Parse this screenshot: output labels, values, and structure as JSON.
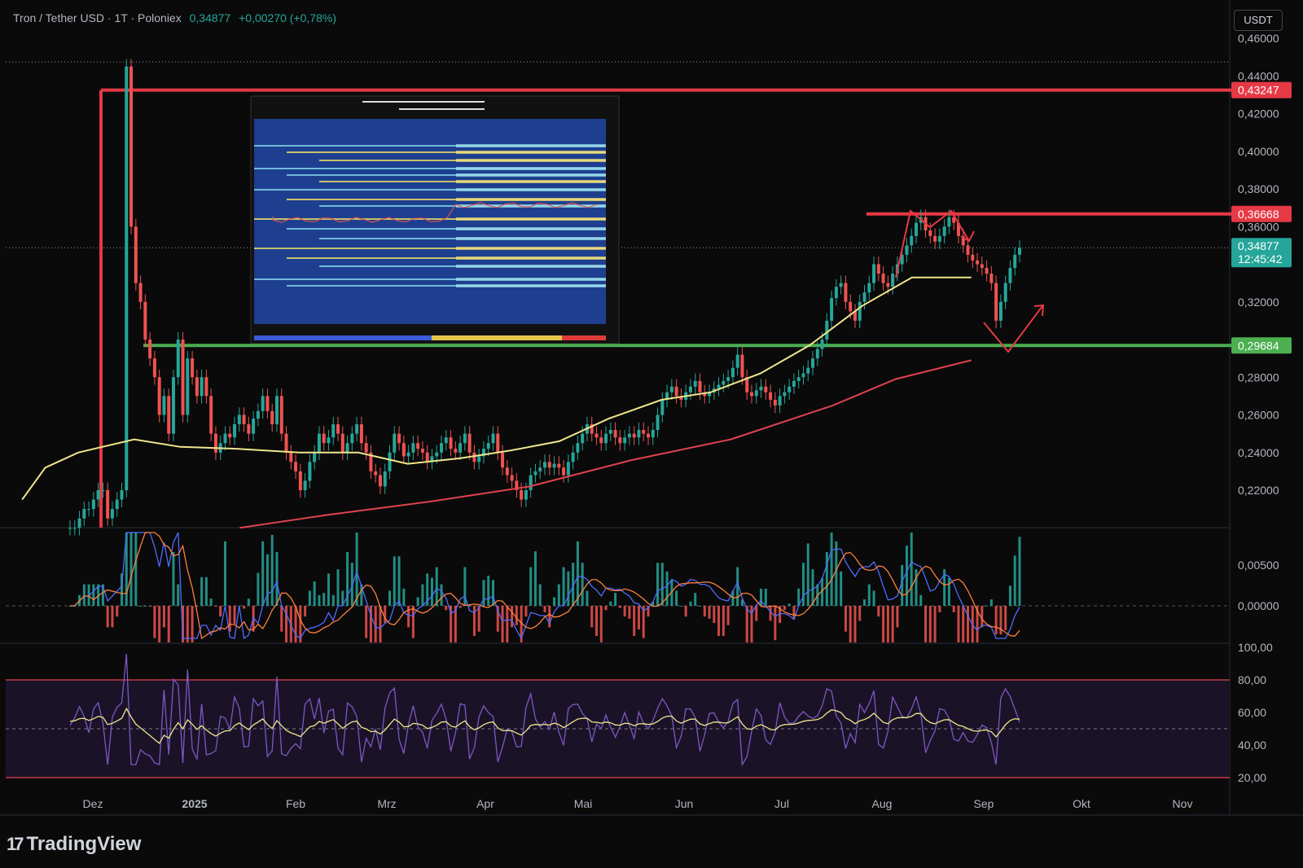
{
  "header": {
    "symbol_text": "Tron / Tether USD · 1T · Poloniex",
    "price": "0,34877",
    "change": "+0,00270 (+0,78%)"
  },
  "currency_button": "USDT",
  "brand": {
    "logo_text": "TradingView",
    "logo_mark": "17"
  },
  "colors": {
    "background": "#0a0a0a",
    "up": "#26a69a",
    "down": "#ef5350",
    "ma_fast": "#f0e68c",
    "ma_slow": "#e0424f",
    "resistance": "#e53945",
    "support": "#4caf50",
    "macd_line": "#4f6bff",
    "signal_line": "#ff7f3f",
    "rsi_line": "#7e57c2"
  },
  "chart_data": [
    {
      "type": "candlestick",
      "title": "Tron / Tether USD · 1T · Poloniex",
      "xlabel": "",
      "ylabel": "USDT",
      "month_labels": [
        "Dez",
        "2025",
        "Feb",
        "Mrz",
        "Apr",
        "Mai",
        "Jun",
        "Jul",
        "Aug",
        "Sep",
        "Okt",
        "Nov"
      ],
      "y_ticks": [
        "0,46000",
        "0,44000",
        "0,42000",
        "0,40000",
        "0,38000",
        "0,36000",
        "0,32000",
        "0,28000",
        "0,26000",
        "0,24000",
        "0,22000"
      ],
      "ylim": [
        0.2,
        0.465
      ],
      "horizontal_levels": [
        {
          "label": "0,43247",
          "value": 0.43247,
          "color": "resistance"
        },
        {
          "label": "0,36668",
          "value": 0.36668,
          "color": "resistance"
        },
        {
          "label": "0,29684",
          "value": 0.29684,
          "color": "support"
        }
      ],
      "last_price_label": {
        "price": "0,34877",
        "countdown": "12:45:42",
        "value": 0.34877
      },
      "moving_averages": [
        {
          "color": "ma_fast",
          "points": [
            [
              "2024-11-28",
              0.215
            ],
            [
              "2024-12-05",
              0.232
            ],
            [
              "2024-12-15",
              0.24
            ],
            [
              "2025-01-01",
              0.247
            ],
            [
              "2025-01-15",
              0.243
            ],
            [
              "2025-02-01",
              0.242
            ],
            [
              "2025-02-20",
              0.24
            ],
            [
              "2025-03-10",
              0.24
            ],
            [
              "2025-03-25",
              0.234
            ],
            [
              "2025-04-10",
              0.237
            ],
            [
              "2025-04-25",
              0.241
            ],
            [
              "2025-05-10",
              0.246
            ],
            [
              "2025-05-25",
              0.258
            ],
            [
              "2025-06-10",
              0.268
            ],
            [
              "2025-06-25",
              0.272
            ],
            [
              "2025-07-10",
              0.282
            ],
            [
              "2025-07-25",
              0.297
            ],
            [
              "2025-08-10",
              0.318
            ],
            [
              "2025-08-25",
              0.333
            ],
            [
              "2025-09-05",
              0.333
            ],
            [
              "2025-09-12",
              0.333
            ]
          ]
        },
        {
          "color": "ma_slow",
          "points": [
            [
              "2025-02-02",
              0.2
            ],
            [
              "2025-03-01",
              0.207
            ],
            [
              "2025-04-01",
              0.214
            ],
            [
              "2025-05-01",
              0.222
            ],
            [
              "2025-06-01",
              0.236
            ],
            [
              "2025-07-01",
              0.247
            ],
            [
              "2025-08-01",
              0.265
            ],
            [
              "2025-08-20",
              0.279
            ],
            [
              "2025-09-12",
              0.289
            ]
          ]
        }
      ],
      "candle_closes": [
        0.2,
        0.2,
        0.205,
        0.21,
        0.21,
        0.215,
        0.22,
        0.22,
        0.205,
        0.21,
        0.215,
        0.22,
        0.445,
        0.36,
        0.33,
        0.32,
        0.3,
        0.29,
        0.28,
        0.26,
        0.27,
        0.25,
        0.28,
        0.3,
        0.26,
        0.29,
        0.28,
        0.27,
        0.28,
        0.27,
        0.25,
        0.24,
        0.245,
        0.25,
        0.248,
        0.255,
        0.26,
        0.255,
        0.25,
        0.258,
        0.262,
        0.27,
        0.262,
        0.255,
        0.27,
        0.25,
        0.24,
        0.235,
        0.23,
        0.22,
        0.225,
        0.235,
        0.24,
        0.25,
        0.245,
        0.248,
        0.255,
        0.25,
        0.24,
        0.245,
        0.25,
        0.255,
        0.245,
        0.24,
        0.23,
        0.228,
        0.222,
        0.23,
        0.24,
        0.25,
        0.245,
        0.238,
        0.24,
        0.245,
        0.242,
        0.24,
        0.235,
        0.238,
        0.24,
        0.245,
        0.248,
        0.242,
        0.24,
        0.245,
        0.25,
        0.24,
        0.235,
        0.238,
        0.242,
        0.245,
        0.25,
        0.24,
        0.232,
        0.228,
        0.225,
        0.22,
        0.215,
        0.22,
        0.228,
        0.23,
        0.232,
        0.235,
        0.232,
        0.234,
        0.232,
        0.228,
        0.235,
        0.24,
        0.245,
        0.25,
        0.255,
        0.25,
        0.248,
        0.245,
        0.25,
        0.252,
        0.248,
        0.245,
        0.248,
        0.25,
        0.248,
        0.252,
        0.25,
        0.248,
        0.252,
        0.26,
        0.268,
        0.272,
        0.275,
        0.27,
        0.268,
        0.272,
        0.275,
        0.278,
        0.272,
        0.27,
        0.272,
        0.274,
        0.276,
        0.278,
        0.28,
        0.285,
        0.292,
        0.28,
        0.272,
        0.27,
        0.273,
        0.275,
        0.272,
        0.268,
        0.265,
        0.27,
        0.272,
        0.275,
        0.278,
        0.28,
        0.282,
        0.285,
        0.29,
        0.295,
        0.3,
        0.31,
        0.322,
        0.328,
        0.33,
        0.32,
        0.315,
        0.31,
        0.32,
        0.325,
        0.33,
        0.34,
        0.335,
        0.33,
        0.328,
        0.335,
        0.34,
        0.345,
        0.35,
        0.355,
        0.362,
        0.365,
        0.358,
        0.355,
        0.352,
        0.355,
        0.36,
        0.365,
        0.362,
        0.355,
        0.35,
        0.345,
        0.342,
        0.34,
        0.338,
        0.335,
        0.33,
        0.31,
        0.32,
        0.33,
        0.338,
        0.345,
        0.34877
      ]
    },
    {
      "type": "line",
      "title": "",
      "y_ticks": [
        "0,00500",
        "0,00000"
      ],
      "zero_line": 0,
      "series": [
        {
          "color": "macd_line"
        },
        {
          "color": "signal_line"
        }
      ]
    },
    {
      "type": "line",
      "title": "",
      "y_ticks": [
        "100,00",
        "80,00",
        "60,00",
        "40,00",
        "20,00"
      ],
      "ylim": [
        15,
        100
      ],
      "bands": [
        80,
        50,
        20
      ],
      "series": [
        {
          "color": "rsi_line"
        },
        {
          "color": "ma_fast"
        }
      ]
    }
  ]
}
